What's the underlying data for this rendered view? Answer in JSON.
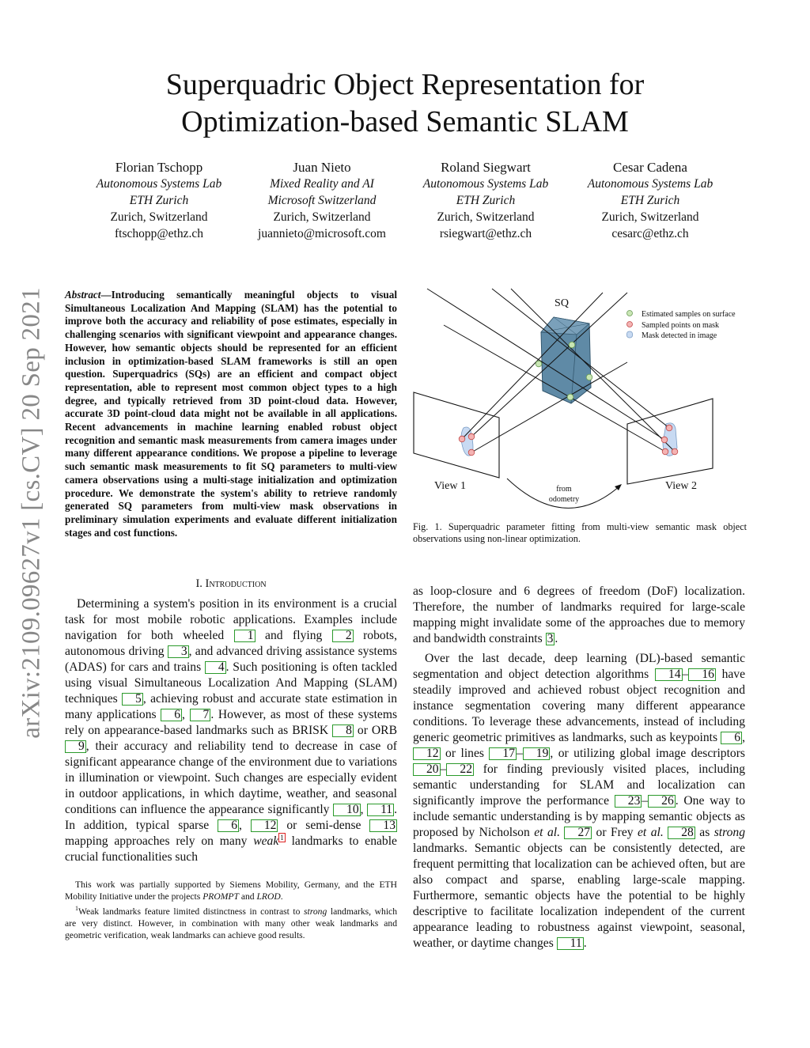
{
  "title": [
    "Superquadric Object Representation for",
    "Optimization-based Semantic SLAM"
  ],
  "authors": [
    {
      "name": "Florian Tschopp",
      "lab": "Autonomous Systems Lab",
      "org": "ETH Zurich",
      "loc": "Zurich, Switzerland",
      "email": "ftschopp@ethz.ch"
    },
    {
      "name": "Juan Nieto",
      "lab": "Mixed Reality and AI",
      "org": "Microsoft Switzerland",
      "loc": "Zurich, Switzerland",
      "email": "juannieto@microsoft.com"
    },
    {
      "name": "Roland Siegwart",
      "lab": "Autonomous Systems Lab",
      "org": "ETH Zurich",
      "loc": "Zurich, Switzerland",
      "email": "rsiegwart@ethz.ch"
    },
    {
      "name": "Cesar Cadena",
      "lab": "Autonomous Systems Lab",
      "org": "ETH Zurich",
      "loc": "Zurich, Switzerland",
      "email": "cesarc@ethz.ch"
    }
  ],
  "arxiv_id": "arXiv:2109.09627v1  [cs.CV]  20 Sep 2021",
  "abstract": {
    "label": "Abstract",
    "text": "—Introducing semantically meaningful objects to visual Simultaneous Localization And Mapping (SLAM) has the potential to improve both the accuracy and reliability of pose estimates, especially in challenging scenarios with significant viewpoint and appearance changes. However, how semantic objects should be represented for an efficient inclusion in optimization-based SLAM frameworks is still an open question. Superquadrics (SQs) are an efficient and compact object representation, able to represent most common object types to a high degree, and typically retrieved from 3D point-cloud data. However, accurate 3D point-cloud data might not be available in all applications. Recent advancements in machine learning enabled robust object recognition and semantic mask measurements from camera images under many different appearance conditions. We propose a pipeline to leverage such semantic mask measurements to fit SQ parameters to multi-view camera observations using a multi-stage initialization and optimization procedure. We demonstrate the system's ability to retrieve randomly generated SQ parameters from multi-view mask observations in preliminary simulation experiments and evaluate different initialization stages and cost functions."
  },
  "section_heading": "I. Introduction",
  "intro": [
    [
      "Determining a system's position in its environment is a crucial task for most mobile robotic applications. Examples include navigation for both wheeled ",
      {
        "c": "1"
      },
      " and flying ",
      {
        "c": "2"
      },
      " robots, autonomous driving ",
      {
        "c": "3"
      },
      ", and advanced driving assistance systems (ADAS) for cars and trains ",
      {
        "c": "4"
      },
      ". Such positioning is often tackled using visual Simultaneous Localization And Mapping (SLAM) techniques ",
      {
        "c": "5"
      },
      ", achieving robust and accurate state estimation in many applications ",
      {
        "c": "6"
      },
      ", ",
      {
        "c": "7"
      },
      ". However, as most of these systems rely on appearance-based landmarks such as BRISK ",
      {
        "c": "8"
      },
      " or ORB ",
      {
        "c": "9"
      },
      ", their accuracy and reliability tend to decrease in case of significant appearance change of the environment due to variations in illumination or viewpoint. Such changes are especially evident in outdoor applications, in which daytime, weather, and seasonal conditions can influence the appearance significantly ",
      {
        "c": "10"
      },
      ", ",
      {
        "c": "11"
      },
      ". In addition, typical sparse ",
      {
        "c": "6"
      },
      ", ",
      {
        "c": "12"
      },
      " or semi-dense ",
      {
        "c": "13"
      },
      " mapping approaches rely on many ",
      {
        "i": "weak"
      },
      {
        "f": "1"
      },
      " landmarks to enable crucial functionalities such"
    ]
  ],
  "right": [
    [
      "as loop-closure and 6 degrees of freedom (DoF) localization. Therefore, the number of landmarks required for large-scale mapping might invalidate some of the approaches due to memory and bandwidth constraints ",
      {
        "c": "3"
      },
      "."
    ],
    [
      "Over the last decade, deep learning (DL)-based semantic segmentation and object detection algorithms ",
      {
        "c": "14"
      },
      "–",
      {
        "c": "16"
      },
      " have steadily improved and achieved robust object recognition and instance segmentation covering many different appearance conditions. To leverage these advancements, instead of including generic geometric primitives as landmarks, such as keypoints ",
      {
        "c": "6"
      },
      ", ",
      {
        "c": "12"
      },
      " or lines ",
      {
        "c": "17"
      },
      "–",
      {
        "c": "19"
      },
      ", or utilizing global image descriptors ",
      {
        "c": "20"
      },
      "–",
      {
        "c": "22"
      },
      " for finding previously visited places, including semantic understanding for SLAM and localization can significantly improve the performance ",
      {
        "c": "23"
      },
      "–",
      {
        "c": "26"
      },
      ". One way to include semantic understanding is by mapping semantic objects as proposed by Nicholson ",
      {
        "i": "et al."
      },
      " ",
      {
        "c": "27"
      },
      " or Frey ",
      {
        "i": "et al."
      },
      " ",
      {
        "c": "28"
      },
      " as ",
      {
        "i": "strong"
      },
      " landmarks. Semantic objects can be consistently detected, are frequent permitting that localization can be achieved often, but are also compact and sparse, enabling large-scale mapping. Furthermore, semantic objects have the potential to be highly descriptive to facilitate localization independent of the current appearance leading to robustness against viewpoint, seasonal, weather, or daytime changes ",
      {
        "c": "11"
      },
      "."
    ]
  ],
  "footnotes": [
    [
      "This work was partially supported by Siemens Mobility, Germany, and the ETH Mobility Initiative under the projects ",
      {
        "i": "PROMPT"
      },
      " and ",
      {
        "i": "LROD"
      },
      "."
    ],
    [
      {
        "s": "1"
      },
      "Weak landmarks feature limited distinctness in contrast to ",
      {
        "i": "strong"
      },
      " landmarks, which are very distinct. However, in combination with many other weak landmarks and geometric verification, weak landmarks can achieve good results."
    ]
  ],
  "figure": {
    "sq_label": "SQ",
    "view1": "View 1",
    "view2": "View 2",
    "odometry": [
      "from",
      "odometry"
    ],
    "legend": [
      "Estimated samples on surface",
      "Sampled points on mask",
      "Mask detected in image"
    ],
    "colors": {
      "surface": "#c9e6b4",
      "mask_point": "#f4b3b3",
      "mask": "#c8daf2",
      "sq": "#5f8aa6"
    },
    "caption": "Fig. 1.  Superquadric parameter fitting from multi-view semantic mask object observations using non-linear optimization."
  }
}
